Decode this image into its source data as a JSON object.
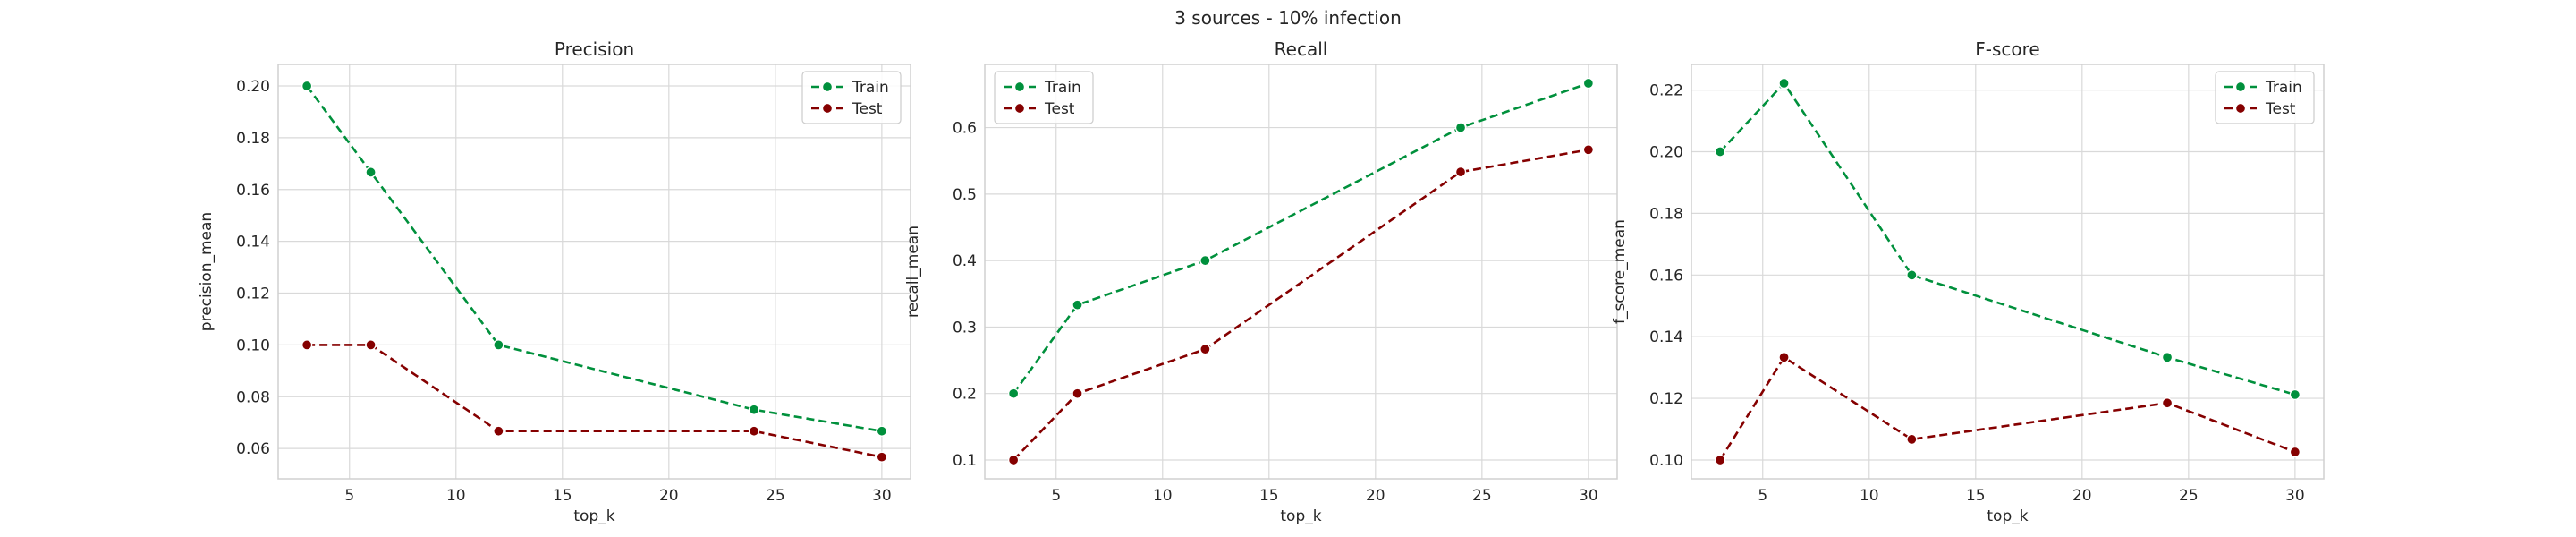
{
  "figure": {
    "suptitle": "3 sources - 10% infection"
  },
  "colors": {
    "train": "#00903c",
    "test": "#850000",
    "grid": "#d9d9d9",
    "frame": "#d0d0d0",
    "text": "#262626"
  },
  "chart_data": [
    {
      "type": "line",
      "title": "Precision",
      "xlabel": "top_k",
      "ylabel": "precision_mean",
      "xlim": [
        1.65,
        31.35
      ],
      "ylim": [
        0.0483,
        0.2083
      ],
      "xticks": [
        5,
        10,
        15,
        20,
        25,
        30
      ],
      "yticks": [
        0.06,
        0.08,
        0.1,
        0.12,
        0.14,
        0.16,
        0.18,
        0.2
      ],
      "ytick_labels": [
        "0.06",
        "0.08",
        "0.10",
        "0.12",
        "0.14",
        "0.16",
        "0.18",
        "0.20"
      ],
      "grid": true,
      "legend_position": "upper right",
      "x": [
        3,
        6,
        12,
        24,
        30
      ],
      "series": [
        {
          "name": "Train",
          "color": "#00903c",
          "linestyle": "dashed",
          "marker": "circle",
          "values": [
            0.2,
            0.1667,
            0.1,
            0.075,
            0.0667
          ]
        },
        {
          "name": "Test",
          "color": "#850000",
          "linestyle": "dashed",
          "marker": "circle",
          "values": [
            0.1,
            0.1,
            0.0667,
            0.0667,
            0.0567
          ]
        }
      ]
    },
    {
      "type": "line",
      "title": "Recall",
      "xlabel": "top_k",
      "ylabel": "recall_mean",
      "xlim": [
        1.65,
        31.35
      ],
      "ylim": [
        0.0717,
        0.695
      ],
      "xticks": [
        5,
        10,
        15,
        20,
        25,
        30
      ],
      "yticks": [
        0.1,
        0.2,
        0.3,
        0.4,
        0.5,
        0.6
      ],
      "ytick_labels": [
        "0.1",
        "0.2",
        "0.3",
        "0.4",
        "0.5",
        "0.6"
      ],
      "grid": true,
      "legend_position": "upper left",
      "x": [
        3,
        6,
        12,
        24,
        30
      ],
      "series": [
        {
          "name": "Train",
          "color": "#00903c",
          "linestyle": "dashed",
          "marker": "circle",
          "values": [
            0.2,
            0.3333,
            0.4,
            0.6,
            0.6667
          ]
        },
        {
          "name": "Test",
          "color": "#850000",
          "linestyle": "dashed",
          "marker": "circle",
          "values": [
            0.1,
            0.2,
            0.2667,
            0.5333,
            0.5667
          ]
        }
      ]
    },
    {
      "type": "line",
      "title": "F-score",
      "xlabel": "top_k",
      "ylabel": "f_score_mean",
      "xlim": [
        1.65,
        31.35
      ],
      "ylim": [
        0.0939,
        0.2283
      ],
      "xticks": [
        5,
        10,
        15,
        20,
        25,
        30
      ],
      "yticks": [
        0.1,
        0.12,
        0.14,
        0.16,
        0.18,
        0.2,
        0.22
      ],
      "ytick_labels": [
        "0.10",
        "0.12",
        "0.14",
        "0.16",
        "0.18",
        "0.20",
        "0.22"
      ],
      "grid": true,
      "legend_position": "upper right",
      "x": [
        3,
        6,
        12,
        24,
        30
      ],
      "series": [
        {
          "name": "Train",
          "color": "#00903c",
          "linestyle": "dashed",
          "marker": "circle",
          "values": [
            0.2,
            0.2222,
            0.16,
            0.1333,
            0.1212
          ]
        },
        {
          "name": "Test",
          "color": "#850000",
          "linestyle": "dashed",
          "marker": "circle",
          "values": [
            0.1,
            0.1333,
            0.1067,
            0.1185,
            0.1026
          ]
        }
      ]
    }
  ]
}
